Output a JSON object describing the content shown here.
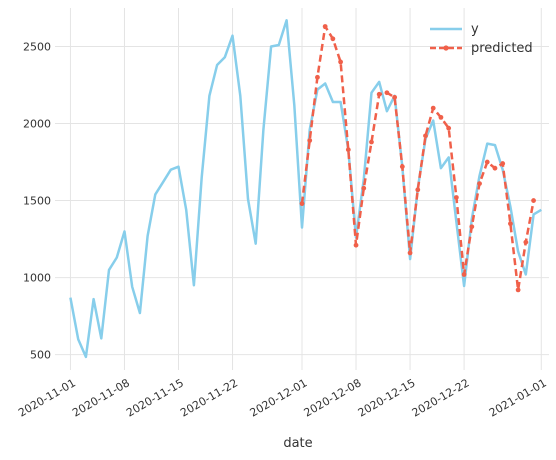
{
  "chart_data": {
    "type": "line",
    "xlabel": "date",
    "ylabel": "",
    "x_ticks": [
      "2020-11-01",
      "2020-11-08",
      "2020-11-15",
      "2020-11-22",
      "2020-12-01",
      "2020-12-08",
      "2020-12-15",
      "2020-12-22",
      "2021-01-01"
    ],
    "y_ticks": [
      500,
      1000,
      1500,
      2000,
      2500
    ],
    "ylim": [
      400,
      2750
    ],
    "xlim": [
      "2020-10-30",
      "2021-01-02"
    ],
    "grid": true,
    "legend_position": "top-right",
    "series": [
      {
        "name": "y",
        "color": "#87ceeb",
        "style": "solid",
        "points": [
          [
            "2020-11-01",
            870
          ],
          [
            "2020-11-02",
            600
          ],
          [
            "2020-11-03",
            485
          ],
          [
            "2020-11-04",
            860
          ],
          [
            "2020-11-05",
            605
          ],
          [
            "2020-11-06",
            1050
          ],
          [
            "2020-11-07",
            1130
          ],
          [
            "2020-11-08",
            1300
          ],
          [
            "2020-11-09",
            940
          ],
          [
            "2020-11-10",
            770
          ],
          [
            "2020-11-11",
            1270
          ],
          [
            "2020-11-12",
            1540
          ],
          [
            "2020-11-13",
            1620
          ],
          [
            "2020-11-14",
            1700
          ],
          [
            "2020-11-15",
            1720
          ],
          [
            "2020-11-16",
            1440
          ],
          [
            "2020-11-17",
            950
          ],
          [
            "2020-11-18",
            1650
          ],
          [
            "2020-11-19",
            2180
          ],
          [
            "2020-11-20",
            2380
          ],
          [
            "2020-11-21",
            2430
          ],
          [
            "2020-11-22",
            2570
          ],
          [
            "2020-11-23",
            2180
          ],
          [
            "2020-11-24",
            1510
          ],
          [
            "2020-11-25",
            1220
          ],
          [
            "2020-11-26",
            1960
          ],
          [
            "2020-11-27",
            2500
          ],
          [
            "2020-11-28",
            2510
          ],
          [
            "2020-11-29",
            2670
          ],
          [
            "2020-11-30",
            2120
          ],
          [
            "2020-12-01",
            1325
          ],
          [
            "2020-12-02",
            1960
          ],
          [
            "2020-12-03",
            2220
          ],
          [
            "2020-12-04",
            2260
          ],
          [
            "2020-12-05",
            2140
          ],
          [
            "2020-12-06",
            2140
          ],
          [
            "2020-12-07",
            1830
          ],
          [
            "2020-12-08",
            1260
          ],
          [
            "2020-12-09",
            1640
          ],
          [
            "2020-12-10",
            2200
          ],
          [
            "2020-12-11",
            2270
          ],
          [
            "2020-12-12",
            2080
          ],
          [
            "2020-12-13",
            2180
          ],
          [
            "2020-12-14",
            1720
          ],
          [
            "2020-12-15",
            1120
          ],
          [
            "2020-12-16",
            1580
          ],
          [
            "2020-12-17",
            1900
          ],
          [
            "2020-12-18",
            2020
          ],
          [
            "2020-12-19",
            1710
          ],
          [
            "2020-12-20",
            1780
          ],
          [
            "2020-12-21",
            1360
          ],
          [
            "2020-12-22",
            945
          ],
          [
            "2020-12-23",
            1380
          ],
          [
            "2020-12-24",
            1660
          ],
          [
            "2020-12-25",
            1870
          ],
          [
            "2020-12-26",
            1860
          ],
          [
            "2020-12-27",
            1700
          ],
          [
            "2020-12-28",
            1460
          ],
          [
            "2020-12-29",
            1170
          ],
          [
            "2020-12-30",
            1020
          ],
          [
            "2020-12-31",
            1410
          ],
          [
            "2021-01-01",
            1440
          ]
        ]
      },
      {
        "name": "predicted",
        "color": "#f0604a",
        "style": "dashed",
        "points": [
          [
            "2020-12-01",
            1480
          ],
          [
            "2020-12-02",
            1890
          ],
          [
            "2020-12-03",
            2300
          ],
          [
            "2020-12-04",
            2630
          ],
          [
            "2020-12-05",
            2550
          ],
          [
            "2020-12-06",
            2400
          ],
          [
            "2020-12-07",
            1830
          ],
          [
            "2020-12-08",
            1210
          ],
          [
            "2020-12-09",
            1580
          ],
          [
            "2020-12-10",
            1880
          ],
          [
            "2020-12-11",
            2190
          ],
          [
            "2020-12-12",
            2200
          ],
          [
            "2020-12-13",
            2170
          ],
          [
            "2020-12-14",
            1720
          ],
          [
            "2020-12-15",
            1160
          ],
          [
            "2020-12-16",
            1570
          ],
          [
            "2020-12-17",
            1920
          ],
          [
            "2020-12-18",
            2100
          ],
          [
            "2020-12-19",
            2040
          ],
          [
            "2020-12-20",
            1970
          ],
          [
            "2020-12-21",
            1520
          ],
          [
            "2020-12-22",
            1020
          ],
          [
            "2020-12-23",
            1330
          ],
          [
            "2020-12-24",
            1610
          ],
          [
            "2020-12-25",
            1750
          ],
          [
            "2020-12-26",
            1710
          ],
          [
            "2020-12-27",
            1740
          ],
          [
            "2020-12-28",
            1350
          ],
          [
            "2020-12-29",
            920
          ],
          [
            "2020-12-30",
            1230
          ],
          [
            "2020-12-31",
            1500
          ]
        ]
      }
    ]
  }
}
